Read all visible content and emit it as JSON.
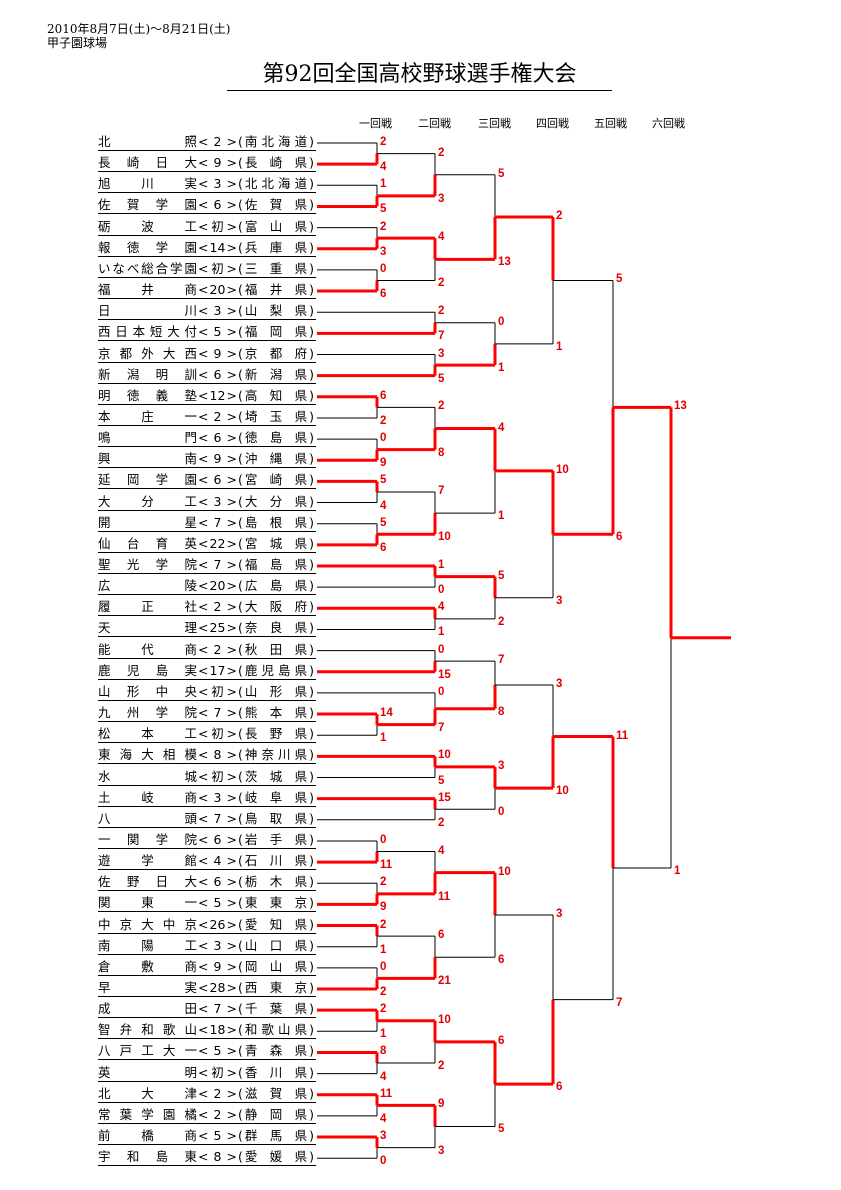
{
  "header": {
    "dates": "2010年8月7日(土)～8月21日(土)",
    "venue": "甲子園球場",
    "title": "第92回全国高校野球選手権大会"
  },
  "rounds": [
    "一回戦",
    "二回戦",
    "三回戦",
    "四回戦",
    "五回戦",
    "六回戦"
  ],
  "colors": {
    "winner": "#ff0000",
    "score": "#e00000",
    "line": "#000000"
  },
  "teams": [
    {
      "name": "北照",
      "seed": "2",
      "pref": "南北海道"
    },
    {
      "name": "長崎日大",
      "seed": "9",
      "pref": "長崎県"
    },
    {
      "name": "旭川実",
      "seed": "3",
      "pref": "北北海道"
    },
    {
      "name": "佐賀学園",
      "seed": "6",
      "pref": "佐賀県"
    },
    {
      "name": "砺波工",
      "seed": "初",
      "pref": "富山県"
    },
    {
      "name": "報徳学園",
      "seed": "14",
      "pref": "兵庫県"
    },
    {
      "name": "いなべ総合学園",
      "seed": "初",
      "pref": "三重県"
    },
    {
      "name": "福井商",
      "seed": "20",
      "pref": "福井県"
    },
    {
      "name": "日川",
      "seed": "3",
      "pref": "山梨県"
    },
    {
      "name": "西日本短大付",
      "seed": "5",
      "pref": "福岡県"
    },
    {
      "name": "京都外大西",
      "seed": "9",
      "pref": "京都府"
    },
    {
      "name": "新潟明訓",
      "seed": "6",
      "pref": "新潟県"
    },
    {
      "name": "明徳義塾",
      "seed": "12",
      "pref": "高知県"
    },
    {
      "name": "本庄一",
      "seed": "2",
      "pref": "埼玉県"
    },
    {
      "name": "鳴門",
      "seed": "6",
      "pref": "徳島県"
    },
    {
      "name": "興南",
      "seed": "9",
      "pref": "沖縄県"
    },
    {
      "name": "延岡学園",
      "seed": "6",
      "pref": "宮崎県"
    },
    {
      "name": "大分工",
      "seed": "3",
      "pref": "大分県"
    },
    {
      "name": "開星",
      "seed": "7",
      "pref": "島根県"
    },
    {
      "name": "仙台育英",
      "seed": "22",
      "pref": "宮城県"
    },
    {
      "name": "聖光学院",
      "seed": "7",
      "pref": "福島県"
    },
    {
      "name": "広陵",
      "seed": "20",
      "pref": "広島県"
    },
    {
      "name": "履正社",
      "seed": "2",
      "pref": "大阪府"
    },
    {
      "name": "天理",
      "seed": "25",
      "pref": "奈良県"
    },
    {
      "name": "能代商",
      "seed": "2",
      "pref": "秋田県"
    },
    {
      "name": "鹿児島実",
      "seed": "17",
      "pref": "鹿児島県"
    },
    {
      "name": "山形中央",
      "seed": "初",
      "pref": "山形県"
    },
    {
      "name": "九州学院",
      "seed": "7",
      "pref": "熊本県"
    },
    {
      "name": "松本工",
      "seed": "初",
      "pref": "長野県"
    },
    {
      "name": "東海大相模",
      "seed": "8",
      "pref": "神奈川県"
    },
    {
      "name": "水城",
      "seed": "初",
      "pref": "茨城県"
    },
    {
      "name": "土岐商",
      "seed": "3",
      "pref": "岐阜県"
    },
    {
      "name": "八頭",
      "seed": "7",
      "pref": "鳥取県"
    },
    {
      "name": "一関学院",
      "seed": "6",
      "pref": "岩手県"
    },
    {
      "name": "遊学館",
      "seed": "4",
      "pref": "石川県"
    },
    {
      "name": "佐野日大",
      "seed": "6",
      "pref": "栃木県"
    },
    {
      "name": "関東一",
      "seed": "5",
      "pref": "東東京"
    },
    {
      "name": "中京大中京",
      "seed": "26",
      "pref": "愛知県"
    },
    {
      "name": "南陽工",
      "seed": "3",
      "pref": "山口県"
    },
    {
      "name": "倉敷商",
      "seed": "9",
      "pref": "岡山県"
    },
    {
      "name": "早実",
      "seed": "28",
      "pref": "西東京"
    },
    {
      "name": "成田",
      "seed": "7",
      "pref": "千葉県"
    },
    {
      "name": "智弁和歌山",
      "seed": "18",
      "pref": "和歌山県"
    },
    {
      "name": "八戸工大一",
      "seed": "5",
      "pref": "青森県"
    },
    {
      "name": "英明",
      "seed": "初",
      "pref": "香川県"
    },
    {
      "name": "北大津",
      "seed": "2",
      "pref": "滋賀県"
    },
    {
      "name": "常葉学園橘",
      "seed": "2",
      "pref": "静岡県"
    },
    {
      "name": "前橋商",
      "seed": "5",
      "pref": "群馬県"
    },
    {
      "name": "宇和島東",
      "seed": "8",
      "pref": "愛媛県"
    }
  ],
  "bracket": {
    "r": 6,
    "s": [
      13,
      1
    ],
    "a": {
      "r": 5,
      "s": [
        5,
        6
      ],
      "a": {
        "r": 4,
        "s": [
          2,
          1
        ],
        "a": {
          "r": 3,
          "s": [
            5,
            13
          ],
          "a": {
            "r": 2,
            "s": [
              2,
              3
            ],
            "a": {
              "r": 1,
              "s": [
                2,
                4
              ],
              "a": 0,
              "b": 1
            },
            "b": {
              "r": 1,
              "s": [
                1,
                5
              ],
              "a": 2,
              "b": 3
            }
          },
          "b": {
            "r": 2,
            "s": [
              4,
              2
            ],
            "a": {
              "r": 1,
              "s": [
                2,
                3
              ],
              "a": 4,
              "b": 5
            },
            "b": {
              "r": 1,
              "s": [
                0,
                6
              ],
              "a": 6,
              "b": 7
            }
          }
        },
        "b": {
          "r": 3,
          "s": [
            0,
            1
          ],
          "a": {
            "r": 2,
            "s": [
              2,
              7
            ],
            "a": 8,
            "b": 9
          },
          "b": {
            "r": 2,
            "s": [
              3,
              5
            ],
            "a": 10,
            "b": 11
          }
        }
      },
      "b": {
        "r": 4,
        "s": [
          10,
          3
        ],
        "a": {
          "r": 3,
          "s": [
            4,
            1
          ],
          "a": {
            "r": 2,
            "s": [
              2,
              8
            ],
            "a": {
              "r": 1,
              "s": [
                6,
                2
              ],
              "a": 12,
              "b": 13
            },
            "b": {
              "r": 1,
              "s": [
                0,
                9
              ],
              "a": 14,
              "b": 15
            }
          },
          "b": {
            "r": 2,
            "s": [
              7,
              10
            ],
            "a": {
              "r": 1,
              "s": [
                5,
                4
              ],
              "a": 16,
              "b": 17
            },
            "b": {
              "r": 1,
              "s": [
                5,
                6
              ],
              "a": 18,
              "b": 19
            }
          }
        },
        "b": {
          "r": 3,
          "s": [
            5,
            2
          ],
          "a": {
            "r": 2,
            "s": [
              1,
              0
            ],
            "a": 20,
            "b": 21
          },
          "b": {
            "r": 2,
            "s": [
              4,
              1
            ],
            "a": 22,
            "b": 23
          }
        }
      }
    },
    "b": {
      "r": 5,
      "s": [
        11,
        7
      ],
      "a": {
        "r": 4,
        "s": [
          3,
          10
        ],
        "a": {
          "r": 3,
          "s": [
            7,
            8
          ],
          "a": {
            "r": 2,
            "s": [
              0,
              15
            ],
            "a": 24,
            "b": 25
          },
          "b": {
            "r": 2,
            "s": [
              0,
              7
            ],
            "a": 26,
            "b": {
              "r": 1,
              "s": [
                14,
                1
              ],
              "a": 27,
              "b": 28
            }
          }
        },
        "b": {
          "r": 3,
          "s": [
            3,
            0
          ],
          "a": {
            "r": 2,
            "s": [
              10,
              5
            ],
            "a": 29,
            "b": 30
          },
          "b": {
            "r": 2,
            "s": [
              15,
              2
            ],
            "a": 31,
            "b": 32
          }
        }
      },
      "b": {
        "r": 4,
        "s": [
          3,
          6
        ],
        "a": {
          "r": 3,
          "s": [
            10,
            6
          ],
          "a": {
            "r": 2,
            "s": [
              4,
              11
            ],
            "a": {
              "r": 1,
              "s": [
                0,
                11
              ],
              "a": 33,
              "b": 34
            },
            "b": {
              "r": 1,
              "s": [
                2,
                9
              ],
              "a": 35,
              "b": 36
            }
          },
          "b": {
            "r": 2,
            "s": [
              6,
              21
            ],
            "a": {
              "r": 1,
              "s": [
                2,
                1
              ],
              "a": 37,
              "b": 38
            },
            "b": {
              "r": 1,
              "s": [
                0,
                2
              ],
              "a": 39,
              "b": 40
            }
          }
        },
        "b": {
          "r": 3,
          "s": [
            6,
            5
          ],
          "a": {
            "r": 2,
            "s": [
              10,
              2
            ],
            "a": {
              "r": 1,
              "s": [
                2,
                1
              ],
              "a": 41,
              "b": 42
            },
            "b": {
              "r": 1,
              "s": [
                8,
                4
              ],
              "a": 43,
              "b": 44
            }
          },
          "b": {
            "r": 2,
            "s": [
              9,
              3
            ],
            "a": {
              "r": 1,
              "s": [
                11,
                4
              ],
              "a": 45,
              "b": 46
            },
            "b": {
              "r": 1,
              "s": [
                3,
                0
              ],
              "a": 47,
              "b": 48
            }
          }
        }
      }
    }
  }
}
